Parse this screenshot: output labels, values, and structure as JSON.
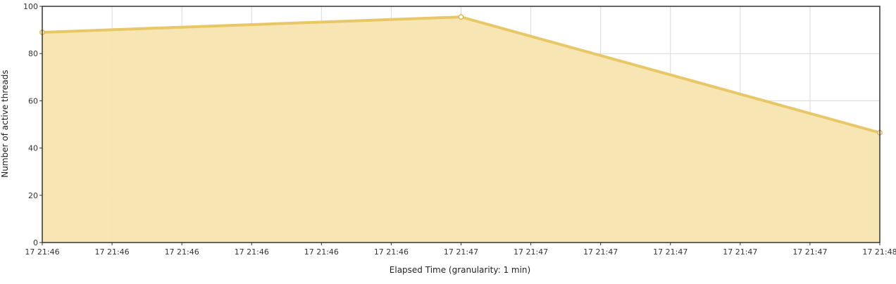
{
  "chart_data": {
    "type": "area",
    "title": "",
    "xlabel": "Elapsed Time (granularity: 1 min)",
    "ylabel": "Number of active threads",
    "x_tick_labels": [
      "17 21:46",
      "17 21:46",
      "17 21:46",
      "17 21:46",
      "17 21:46",
      "17 21:46",
      "17 21:47",
      "17 21:47",
      "17 21:47",
      "17 21:47",
      "17 21:47",
      "17 21:47",
      "17 21:48"
    ],
    "y_ticks": [
      0,
      20,
      40,
      60,
      80,
      100
    ],
    "ylim": [
      0,
      100
    ],
    "x": [
      "21:46",
      "21:47",
      "21:48"
    ],
    "series": [
      {
        "values": [
          89,
          95.5,
          46.5
        ],
        "color": "#e8c766",
        "fill_color": "#f7e4b0"
      }
    ],
    "grid": true,
    "legend": "none"
  }
}
